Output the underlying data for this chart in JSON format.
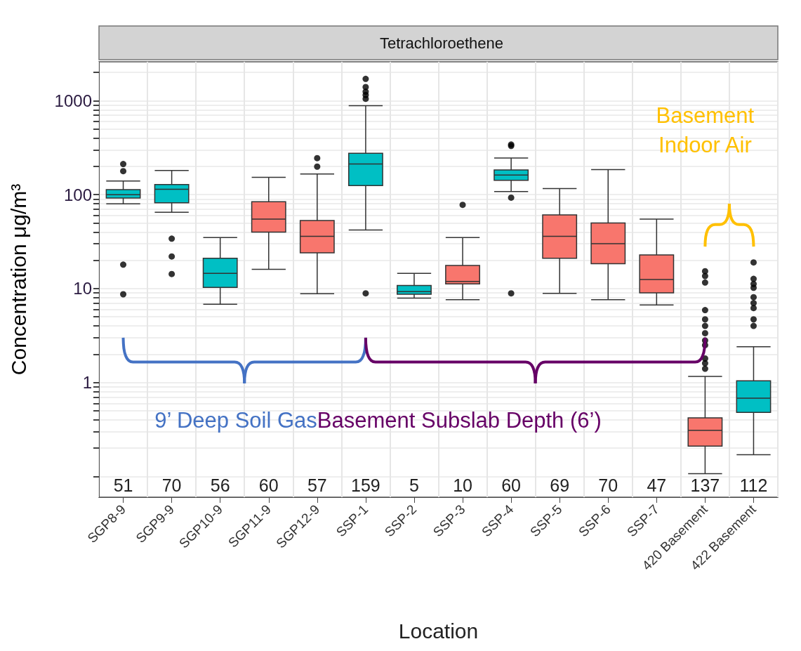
{
  "chart_data": {
    "type": "box",
    "title": "Tetrachloroethene",
    "xlabel": "Location",
    "ylabel": "Concentration μg/m³",
    "categories": [
      "SGP8-9",
      "SGP9-9",
      "SGP10-9",
      "SGP11-9",
      "SGP12-9",
      "SSP-1",
      "SSP-2",
      "SSP-3",
      "SSP-4",
      "SSP-5",
      "SSP-6",
      "SSP-7",
      "420 Basement",
      "422 Basement"
    ],
    "colors": [
      "#00bfc4",
      "#00bfc4",
      "#00bfc4",
      "#f8766d",
      "#f8766d",
      "#00bfc4",
      "#00bfc4",
      "#f8766d",
      "#00bfc4",
      "#f8766d",
      "#f8766d",
      "#f8766d",
      "#f8766d",
      "#00bfc4"
    ],
    "boxes": [
      {
        "low": 80,
        "q1": 92,
        "median": 100,
        "q3": 113,
        "high": 140,
        "outliers": [
          212,
          178,
          18,
          8.7
        ]
      },
      {
        "low": 65,
        "q1": 82,
        "median": 114,
        "q3": 128,
        "high": 181,
        "outliers": [
          34,
          22,
          14.3
        ]
      },
      {
        "low": 6.8,
        "q1": 10.3,
        "median": 14.5,
        "q3": 21,
        "high": 35
      },
      {
        "low": 16,
        "q1": 40,
        "median": 55,
        "q3": 84,
        "high": 153
      },
      {
        "low": 8.8,
        "q1": 24,
        "median": 36,
        "q3": 53,
        "high": 166,
        "outliers": [
          245,
          199
        ]
      },
      {
        "low": 42,
        "q1": 125,
        "median": 212,
        "q3": 276,
        "high": 885,
        "outliers": [
          1710,
          1400,
          1250,
          1150,
          1050,
          8.9
        ]
      },
      {
        "low": 7.9,
        "q1": 8.7,
        "median": 9.3,
        "q3": 10.8,
        "high": 14.5
      },
      {
        "low": 7.6,
        "q1": 11.2,
        "median": 11.9,
        "q3": 17.6,
        "high": 35,
        "outliers": [
          78
        ]
      },
      {
        "low": 108,
        "q1": 142,
        "median": 162,
        "q3": 183,
        "high": 246,
        "outliers": [
          342,
          330,
          93,
          8.9
        ]
      },
      {
        "low": 8.9,
        "q1": 21,
        "median": 36,
        "q3": 61,
        "high": 116
      },
      {
        "low": 7.6,
        "q1": 18.4,
        "median": 30,
        "q3": 50,
        "high": 185
      },
      {
        "low": 6.7,
        "q1": 9,
        "median": 12.5,
        "q3": 22.8,
        "high": 55
      },
      {
        "low": 0.107,
        "q1": 0.21,
        "median": 0.31,
        "q3": 0.42,
        "high": 1.16,
        "outliers": [
          15.3,
          13.6,
          11.6,
          5.9,
          4.7,
          4,
          3.35,
          2.8,
          2.5,
          1.8,
          1.6,
          1.4
        ]
      },
      {
        "low": 0.17,
        "q1": 0.48,
        "median": 0.68,
        "q3": 1.04,
        "high": 2.4,
        "outliers": [
          19,
          12.7,
          11.2,
          10.2,
          8.1,
          7,
          6.2,
          4.7,
          4
        ]
      }
    ],
    "ylim": [
      0.06,
      2600
    ],
    "yticks": [
      {
        "value": 0.1,
        "label": null
      },
      {
        "value": 0.2,
        "label": null
      },
      {
        "value": 0.3,
        "label": null
      },
      {
        "value": 0.4,
        "label": null
      },
      {
        "value": 0.5,
        "label": null
      },
      {
        "value": 0.6,
        "label": null
      },
      {
        "value": 0.7,
        "label": null
      },
      {
        "value": 0.8,
        "label": null
      },
      {
        "value": 0.9,
        "label": null
      },
      1,
      {
        "value": 2,
        "label": null
      },
      {
        "value": 3,
        "label": null
      },
      {
        "value": 4,
        "label": null
      },
      {
        "value": 5,
        "label": null
      },
      {
        "value": 6,
        "label": null
      },
      {
        "value": 7,
        "label": null
      },
      {
        "value": 8,
        "label": null
      },
      {
        "value": 9,
        "label": null
      },
      10,
      {
        "value": 20,
        "label": null
      },
      {
        "value": 30,
        "label": null
      },
      {
        "value": 40,
        "label": null
      },
      {
        "value": 50,
        "label": null
      },
      {
        "value": 60,
        "label": null
      },
      {
        "value": 70,
        "label": null
      },
      {
        "value": 80,
        "label": null
      },
      {
        "value": 90,
        "label": null
      },
      100,
      {
        "value": 200,
        "label": null
      },
      {
        "value": 300,
        "label": null
      },
      {
        "value": 400,
        "label": null
      },
      {
        "value": 500,
        "label": null
      },
      {
        "value": 600,
        "label": null
      },
      {
        "value": 700,
        "label": null
      },
      {
        "value": 800,
        "label": null
      },
      {
        "value": 900,
        "label": null
      },
      1000,
      {
        "value": 2000,
        "label": null
      }
    ],
    "log": true,
    "grid": true,
    "annotations": [
      "51",
      "70",
      "56",
      "60",
      "57",
      "159",
      "5",
      "10",
      "60",
      "69",
      "70",
      "47",
      "137",
      "112",
      "9’ Deep Soil Gas",
      "Basement Subslab Depth (6’)",
      "Basement Indoor Air"
    ]
  }
}
